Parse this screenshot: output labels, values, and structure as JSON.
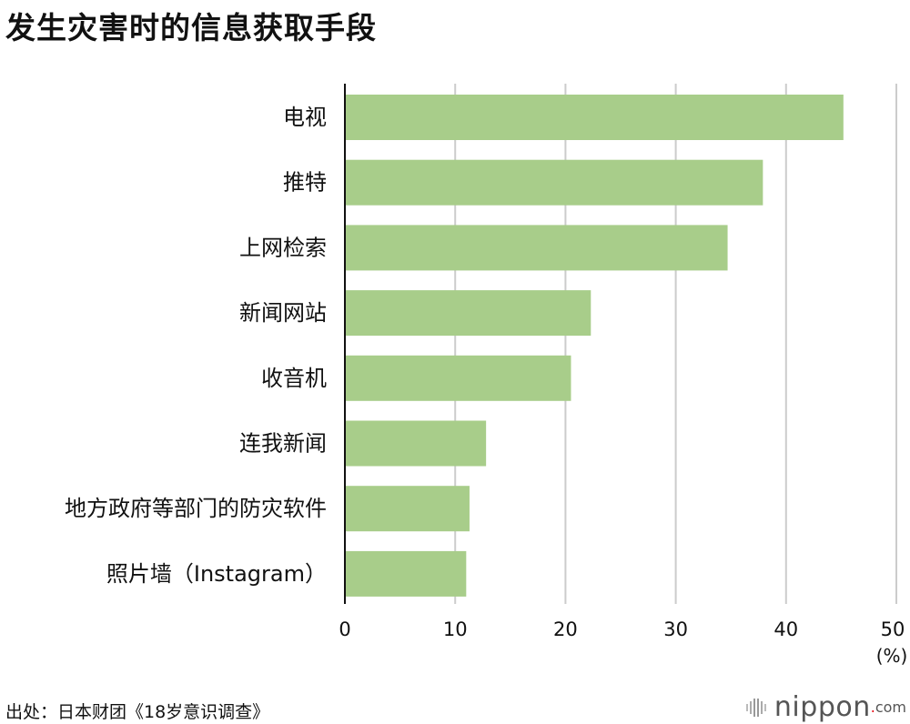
{
  "chart_data": {
    "type": "bar",
    "orientation": "horizontal",
    "title": "发生灾害时的信息获取手段",
    "categories": [
      "电视",
      "推特",
      "上网检索",
      "新闻网站",
      "收音机",
      "连我新闻",
      "地方政府等部门的防灾软件",
      "照片墙（Instagram）"
    ],
    "values": [
      45.2,
      37.9,
      34.7,
      22.3,
      20.5,
      12.8,
      11.3,
      11.0
    ],
    "xlim": [
      0,
      50
    ],
    "xticks": [
      "0",
      "10",
      "20",
      "30",
      "40",
      "50"
    ],
    "xunit": "(%)",
    "grid": true,
    "legend": "none",
    "bar_color": "#a8cd8a",
    "grid_color": "#cccccc"
  },
  "footer": {
    "source": "出处：日本财团《18岁意识调查》",
    "brand_name": "nippon",
    "brand_dot": ".",
    "brand_tld": "com"
  }
}
